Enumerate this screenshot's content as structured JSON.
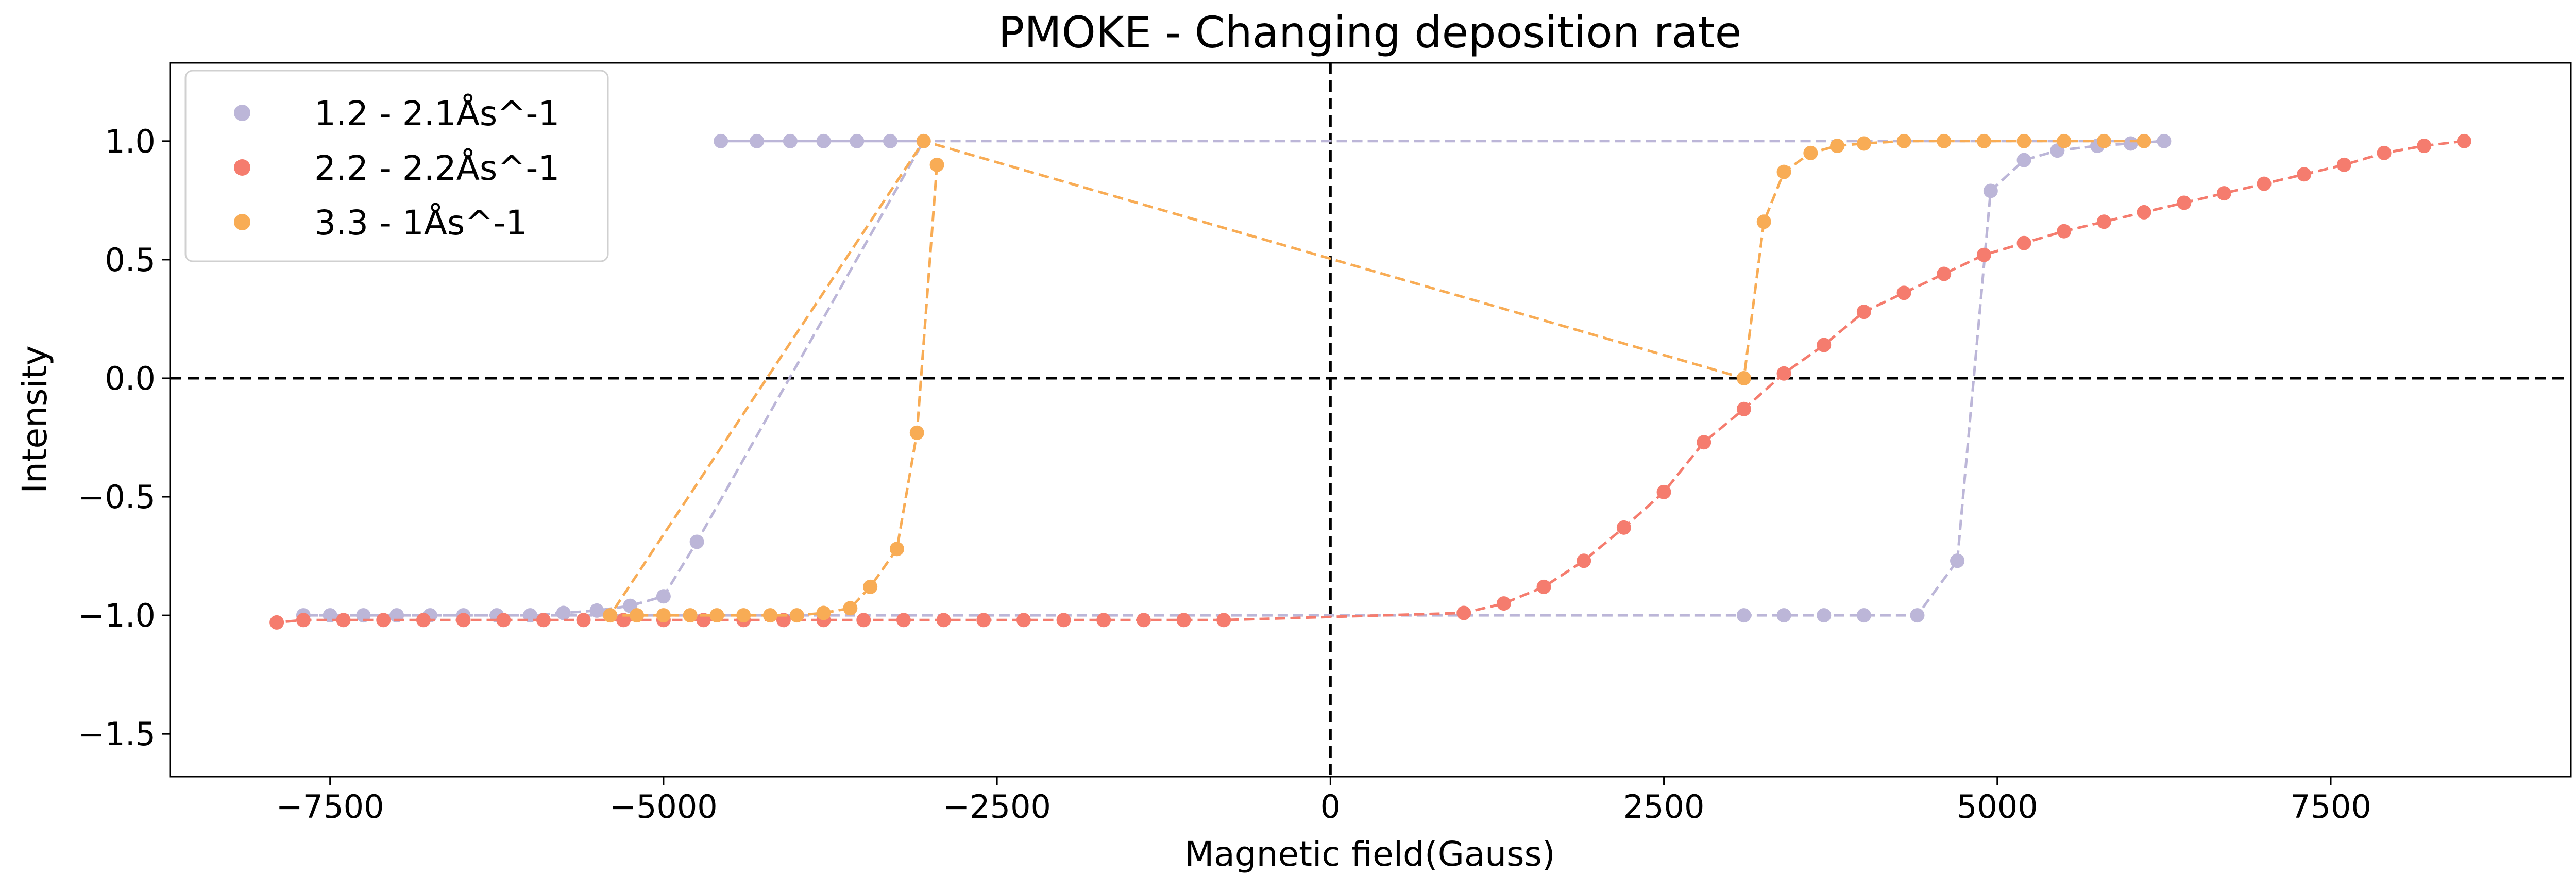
{
  "chart_data": {
    "type": "scatter",
    "title": "PMOKE - Changing deposition rate",
    "xlabel": "Magnetic field(Gauss)",
    "ylabel": "Intensity",
    "xlim": [
      -8700,
      9300
    ],
    "ylim": [
      -1.68,
      1.33
    ],
    "xticks": [
      -7500,
      -5000,
      -2500,
      0,
      2500,
      5000,
      7500
    ],
    "xtick_labels": [
      "−7500",
      "−5000",
      "−2500",
      "0",
      "2500",
      "5000",
      "7500"
    ],
    "yticks": [
      -1.5,
      -1.0,
      -0.5,
      0.0,
      0.5,
      1.0
    ],
    "ytick_labels": [
      "−1.5",
      "−1.0",
      "−0.5",
      "0.0",
      "0.5",
      "1.0"
    ],
    "grid": false,
    "legend_position": "top-left",
    "reference_lines": {
      "x": 0,
      "y": 0,
      "style": "dashed",
      "color": "#000000"
    },
    "series": [
      {
        "name": "1.2 - 2.1Ås^-1",
        "color": "#bcb6d8",
        "x": [
          4700,
          4950,
          5200,
          5450,
          5750,
          6000,
          6250,
          -4570,
          -4300,
          -4050,
          -3800,
          -3550,
          -3300,
          -3050,
          -4750,
          -5000,
          -5250,
          -5500,
          -5750,
          -6000,
          -6250,
          -6500,
          -6750,
          -7000,
          -7250,
          -7500,
          -7700,
          3100,
          3400,
          3700,
          4000,
          4400,
          4700
        ],
        "y": [
          -0.77,
          0.79,
          0.92,
          0.96,
          0.98,
          0.99,
          1.0,
          1.0,
          1.0,
          1.0,
          1.0,
          1.0,
          1.0,
          1.0,
          -0.69,
          -0.92,
          -0.96,
          -0.98,
          -0.99,
          -1.0,
          -1.0,
          -1.0,
          -1.0,
          -1.0,
          -1.0,
          -1.0,
          -1.0,
          -1.0,
          -1.0,
          -1.0,
          -1.0,
          -1.0,
          -0.77
        ]
      },
      {
        "name": "2.2 - 2.2Ås^-1",
        "color": "#f57c6e",
        "x": [
          8500,
          8200,
          7900,
          7600,
          7300,
          7000,
          6700,
          6400,
          6100,
          5800,
          5500,
          5200,
          4900,
          4600,
          4300,
          4000,
          3700,
          3400,
          3100,
          2800,
          2500,
          2200,
          1900,
          1600,
          1300,
          1000,
          -800,
          -1100,
          -1400,
          -1700,
          -2000,
          -2300,
          -2600,
          -2900,
          -3200,
          -3500,
          -3800,
          -4100,
          -4400,
          -4700,
          -5000,
          -5300,
          -5600,
          -5900,
          -6200,
          -6500,
          -6800,
          -7100,
          -7400,
          -7700,
          -7900
        ],
        "y": [
          1.0,
          0.98,
          0.95,
          0.9,
          0.86,
          0.82,
          0.78,
          0.74,
          0.7,
          0.66,
          0.62,
          0.57,
          0.52,
          0.44,
          0.36,
          0.28,
          0.14,
          0.02,
          -0.13,
          -0.27,
          -0.48,
          -0.63,
          -0.77,
          -0.88,
          -0.95,
          -0.99,
          -1.02,
          -1.02,
          -1.02,
          -1.02,
          -1.02,
          -1.02,
          -1.02,
          -1.02,
          -1.02,
          -1.02,
          -1.02,
          -1.02,
          -1.02,
          -1.02,
          -1.02,
          -1.02,
          -1.02,
          -1.02,
          -1.02,
          -1.02,
          -1.02,
          -1.02,
          -1.02,
          -1.02,
          -1.03
        ]
      },
      {
        "name": "3.3 - 1Ås^-1",
        "color": "#f8ac55",
        "x": [
          -2950,
          -3100,
          -3250,
          -3450,
          -3600,
          -3800,
          -4000,
          -4200,
          -4400,
          -4600,
          -4800,
          -5000,
          -5200,
          -5400,
          -3050,
          3100,
          3250,
          3400,
          3600,
          3800,
          4000,
          4300,
          4600,
          4900,
          5200,
          5500,
          5800,
          6100
        ],
        "y": [
          0.9,
          -0.23,
          -0.72,
          -0.88,
          -0.97,
          -0.99,
          -1.0,
          -1.0,
          -1.0,
          -1.0,
          -1.0,
          -1.0,
          -1.0,
          -1.0,
          1.0,
          0.0,
          0.66,
          0.87,
          0.95,
          0.98,
          0.99,
          1.0,
          1.0,
          1.0,
          1.0,
          1.0,
          1.0,
          1.0
        ]
      }
    ]
  }
}
